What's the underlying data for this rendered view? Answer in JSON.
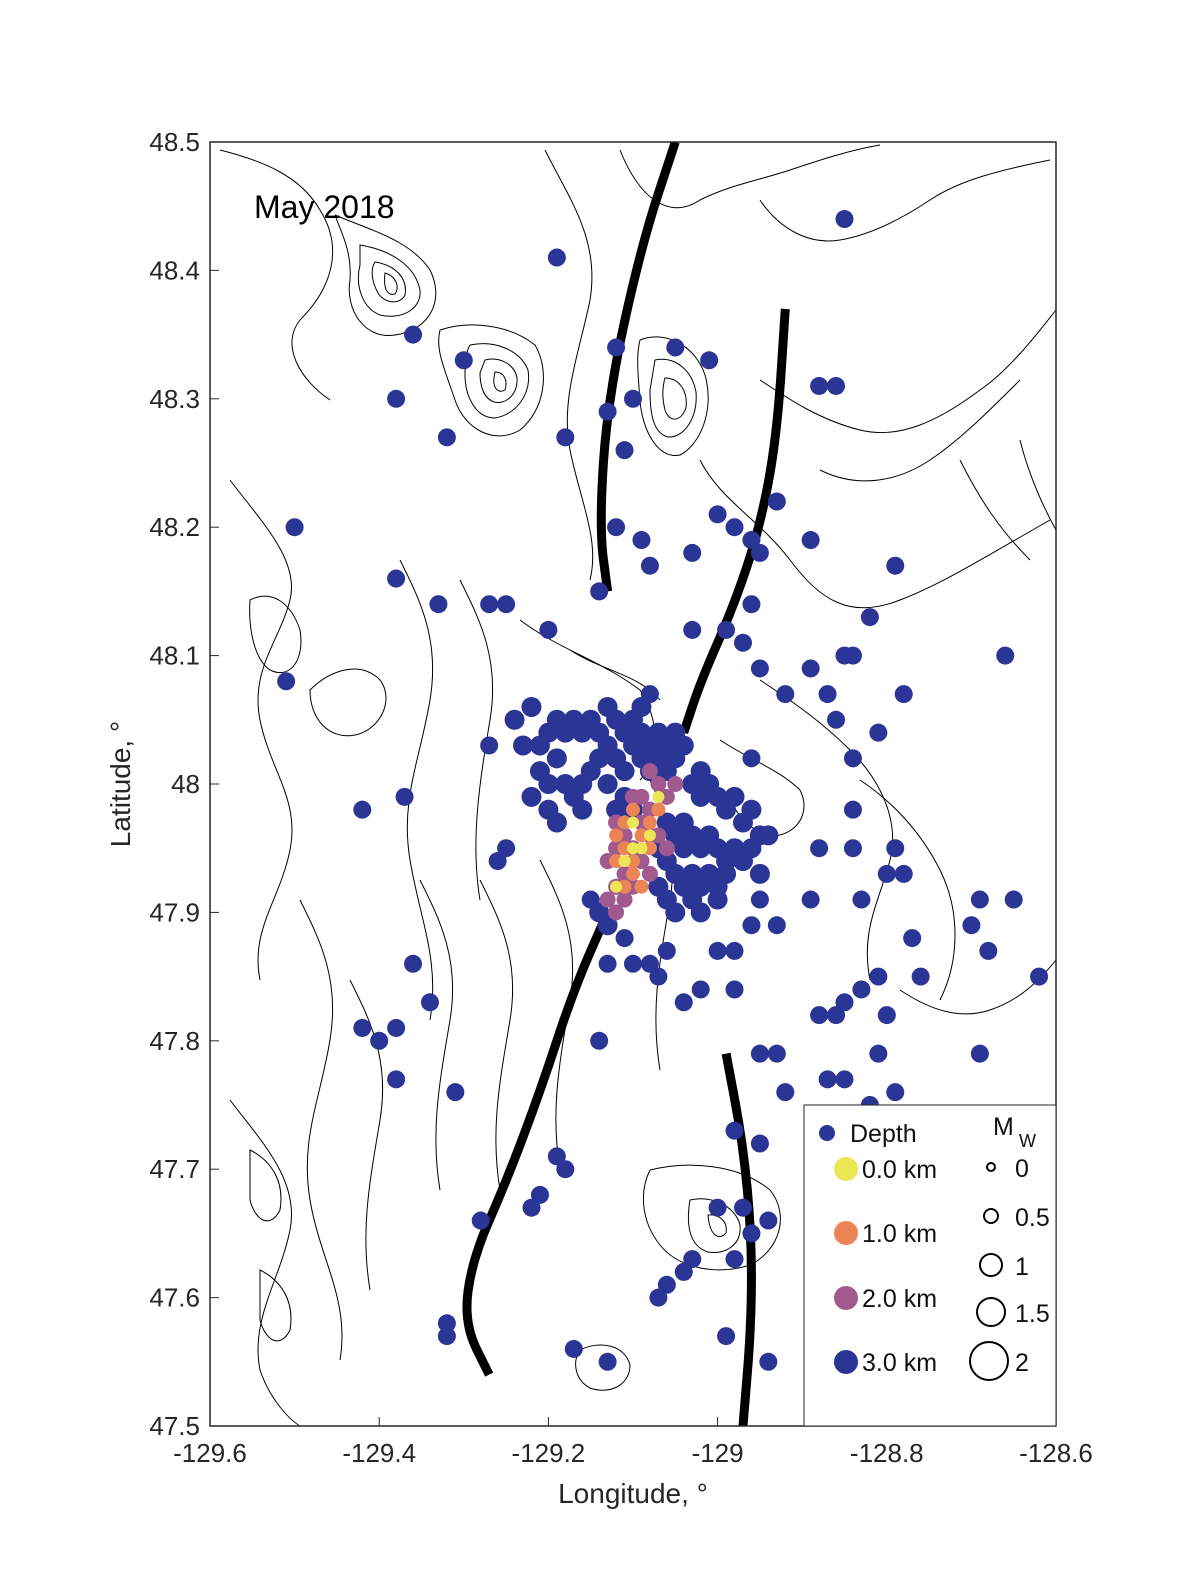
{
  "chart_data": {
    "type": "scatter",
    "annotation": "May 2018",
    "xlabel": "Longitude, °",
    "ylabel": "Latitude, °",
    "xlim": [
      -129.6,
      -128.6
    ],
    "ylim": [
      47.5,
      48.5
    ],
    "xticks": [
      "-129.6",
      "-129.4",
      "-129.2",
      "-129",
      "-128.8",
      "-128.6"
    ],
    "yticks": [
      "47.5",
      "47.6",
      "47.7",
      "47.8",
      "47.9",
      "48",
      "48.1",
      "48.2",
      "48.3",
      "48.4",
      "48.5"
    ],
    "grid": false,
    "legend": {
      "placement": "bottom-right",
      "depth_title": "Depth",
      "depth_entries": [
        {
          "label": "0.0 km",
          "color": "#ece655"
        },
        {
          "label": "1.0 km",
          "color": "#ec8556"
        },
        {
          "label": "2.0 km",
          "color": "#a05a8f"
        },
        {
          "label": "3.0 km",
          "color": "#2b3596"
        }
      ],
      "mag_title": "M",
      "mag_subscript": "W",
      "mag_entries": [
        "0",
        "0.5",
        "1",
        "1.5",
        "2"
      ]
    },
    "colors": {
      "deep": "#2b3596",
      "mid": "#a05a8f",
      "shallow_orange": "#ec8556",
      "shallow_yellow": "#ece655",
      "contour": "#000000",
      "fault": "#000000"
    },
    "fault_traces": [
      {
        "name": "",
        "points": [
          [
            -129.05,
            48.5
          ],
          [
            -129.09,
            48.42
          ],
          [
            -129.13,
            48.3
          ],
          [
            -129.14,
            48.2
          ],
          [
            -129.13,
            48.15
          ]
        ]
      },
      {
        "name": "",
        "points": [
          [
            -128.92,
            48.37
          ],
          [
            -128.93,
            48.27
          ],
          [
            -128.95,
            48.2
          ],
          [
            -128.98,
            48.14
          ],
          [
            -129.02,
            48.08
          ],
          [
            -129.04,
            48.04
          ]
        ]
      },
      {
        "name": "",
        "points": [
          [
            -129.13,
            47.9
          ],
          [
            -129.17,
            47.84
          ],
          [
            -129.21,
            47.76
          ],
          [
            -129.25,
            47.69
          ],
          [
            -129.29,
            47.63
          ],
          [
            -129.3,
            47.58
          ],
          [
            -129.27,
            47.54
          ]
        ]
      },
      {
        "name": "",
        "points": [
          [
            -128.99,
            47.79
          ],
          [
            -128.97,
            47.72
          ],
          [
            -128.96,
            47.65
          ],
          [
            -128.96,
            47.58
          ],
          [
            -128.97,
            47.5
          ]
        ]
      }
    ],
    "events_scattered": [
      [
        -128.85,
        48.44,
        3
      ],
      [
        -129.19,
        48.41,
        3
      ],
      [
        -129.36,
        48.35,
        3
      ],
      [
        -129.12,
        48.34,
        3
      ],
      [
        -129.3,
        48.33,
        3
      ],
      [
        -129.05,
        48.34,
        3
      ],
      [
        -129.01,
        48.33,
        3
      ],
      [
        -128.88,
        48.31,
        3
      ],
      [
        -128.86,
        48.31,
        3
      ],
      [
        -129.38,
        48.3,
        3
      ],
      [
        -129.13,
        48.29,
        3
      ],
      [
        -129.1,
        48.3,
        3
      ],
      [
        -129.32,
        48.27,
        3
      ],
      [
        -129.18,
        48.27,
        3
      ],
      [
        -129.11,
        48.26,
        3
      ],
      [
        -128.93,
        48.22,
        3
      ],
      [
        -129.12,
        48.2,
        3
      ],
      [
        -129.09,
        48.19,
        3
      ],
      [
        -129.5,
        48.2,
        3
      ],
      [
        -129.03,
        48.18,
        3
      ],
      [
        -128.96,
        48.19,
        3
      ],
      [
        -128.89,
        48.19,
        3
      ],
      [
        -128.98,
        48.2,
        3
      ],
      [
        -129.0,
        48.21,
        3
      ],
      [
        -129.08,
        48.17,
        3
      ],
      [
        -128.95,
        48.18,
        3
      ],
      [
        -128.79,
        48.17,
        3
      ],
      [
        -129.38,
        48.16,
        3
      ],
      [
        -129.14,
        48.15,
        3
      ],
      [
        -129.33,
        48.14,
        3
      ],
      [
        -129.27,
        48.14,
        3
      ],
      [
        -129.25,
        48.14,
        3
      ],
      [
        -128.96,
        48.14,
        3
      ],
      [
        -128.82,
        48.13,
        3
      ],
      [
        -129.2,
        48.12,
        3
      ],
      [
        -128.99,
        48.12,
        3
      ],
      [
        -129.03,
        48.12,
        3
      ],
      [
        -128.97,
        48.11,
        3
      ],
      [
        -128.85,
        48.1,
        3
      ],
      [
        -128.84,
        48.1,
        3
      ],
      [
        -128.66,
        48.1,
        3
      ],
      [
        -128.95,
        48.09,
        3
      ],
      [
        -129.51,
        48.08,
        3
      ],
      [
        -128.89,
        48.09,
        3
      ],
      [
        -128.78,
        48.07,
        3
      ],
      [
        -129.08,
        48.07,
        3
      ],
      [
        -128.87,
        48.07,
        3
      ],
      [
        -128.92,
        48.07,
        3
      ],
      [
        -128.86,
        48.05,
        3
      ],
      [
        -128.81,
        48.04,
        3
      ],
      [
        -129.27,
        48.03,
        3
      ],
      [
        -128.84,
        48.02,
        3
      ],
      [
        -128.96,
        48.02,
        3
      ],
      [
        -129.42,
        47.98,
        3
      ],
      [
        -129.37,
        47.99,
        3
      ],
      [
        -128.84,
        47.98,
        3
      ],
      [
        -128.79,
        47.95,
        3
      ],
      [
        -128.88,
        47.95,
        3
      ],
      [
        -128.84,
        47.95,
        3
      ],
      [
        -129.26,
        47.94,
        3
      ],
      [
        -129.25,
        47.95,
        3
      ],
      [
        -128.8,
        47.93,
        3
      ],
      [
        -128.78,
        47.93,
        3
      ],
      [
        -128.83,
        47.91,
        3
      ],
      [
        -129.15,
        47.91,
        3
      ],
      [
        -128.89,
        47.91,
        3
      ],
      [
        -128.95,
        47.91,
        3
      ],
      [
        -128.69,
        47.91,
        3
      ],
      [
        -128.65,
        47.91,
        3
      ],
      [
        -128.7,
        47.89,
        3
      ],
      [
        -129.11,
        47.88,
        3
      ],
      [
        -128.96,
        47.89,
        3
      ],
      [
        -128.93,
        47.89,
        3
      ],
      [
        -128.77,
        47.88,
        3
      ],
      [
        -129.0,
        47.87,
        3
      ],
      [
        -128.98,
        47.87,
        3
      ],
      [
        -129.06,
        47.87,
        3
      ],
      [
        -128.68,
        47.87,
        3
      ],
      [
        -129.36,
        47.86,
        3
      ],
      [
        -129.08,
        47.86,
        3
      ],
      [
        -129.13,
        47.86,
        3
      ],
      [
        -129.1,
        47.86,
        3
      ],
      [
        -129.07,
        47.85,
        3
      ],
      [
        -128.81,
        47.85,
        3
      ],
      [
        -128.76,
        47.85,
        3
      ],
      [
        -128.62,
        47.85,
        3
      ],
      [
        -129.02,
        47.84,
        3
      ],
      [
        -128.83,
        47.84,
        3
      ],
      [
        -128.85,
        47.83,
        3
      ],
      [
        -129.04,
        47.83,
        3
      ],
      [
        -128.98,
        47.84,
        3
      ],
      [
        -129.34,
        47.83,
        3
      ],
      [
        -128.86,
        47.82,
        3
      ],
      [
        -128.88,
        47.82,
        3
      ],
      [
        -128.8,
        47.82,
        3
      ],
      [
        -129.42,
        47.81,
        3
      ],
      [
        -129.4,
        47.8,
        3
      ],
      [
        -129.38,
        47.81,
        3
      ],
      [
        -129.14,
        47.8,
        3
      ],
      [
        -128.95,
        47.79,
        3
      ],
      [
        -128.93,
        47.79,
        3
      ],
      [
        -128.81,
        47.79,
        3
      ],
      [
        -128.69,
        47.79,
        3
      ],
      [
        -128.87,
        47.77,
        3
      ],
      [
        -128.85,
        47.77,
        3
      ],
      [
        -129.38,
        47.77,
        3
      ],
      [
        -128.79,
        47.76,
        3
      ],
      [
        -129.31,
        47.76,
        3
      ],
      [
        -128.92,
        47.76,
        3
      ],
      [
        -128.82,
        47.75,
        3
      ],
      [
        -128.98,
        47.73,
        3
      ],
      [
        -129.19,
        47.71,
        3
      ],
      [
        -128.95,
        47.72,
        3
      ],
      [
        -129.18,
        47.7,
        3
      ],
      [
        -128.78,
        47.69,
        3
      ],
      [
        -129.21,
        47.68,
        3
      ],
      [
        -129.22,
        47.67,
        3
      ],
      [
        -129.0,
        47.67,
        3
      ],
      [
        -128.97,
        47.67,
        3
      ],
      [
        -129.28,
        47.66,
        3
      ],
      [
        -128.67,
        47.67,
        3
      ],
      [
        -128.94,
        47.66,
        3
      ],
      [
        -128.96,
        47.65,
        3
      ],
      [
        -128.87,
        47.65,
        3
      ],
      [
        -128.88,
        47.64,
        3
      ],
      [
        -128.85,
        47.65,
        3
      ],
      [
        -129.04,
        47.62,
        3
      ],
      [
        -129.03,
        47.63,
        3
      ],
      [
        -128.98,
        47.63,
        3
      ],
      [
        -129.07,
        47.6,
        3
      ],
      [
        -129.06,
        47.61,
        3
      ],
      [
        -129.32,
        47.58,
        3
      ],
      [
        -129.32,
        47.57,
        3
      ],
      [
        -128.99,
        47.57,
        3
      ],
      [
        -129.17,
        47.56,
        3
      ],
      [
        -129.13,
        47.55,
        3
      ],
      [
        -128.94,
        47.55,
        3
      ]
    ],
    "events_cluster_deep": [
      [
        -129.17,
        48.05,
        3
      ],
      [
        -129.18,
        48.04,
        3
      ],
      [
        -129.19,
        48.05,
        3
      ],
      [
        -129.2,
        48.04,
        3
      ],
      [
        -129.16,
        48.04,
        3
      ],
      [
        -129.15,
        48.05,
        3
      ],
      [
        -129.13,
        48.06,
        3
      ],
      [
        -129.12,
        48.05,
        3
      ],
      [
        -129.11,
        48.04,
        3
      ],
      [
        -129.1,
        48.05,
        3
      ],
      [
        -129.09,
        48.04,
        3
      ],
      [
        -129.08,
        48.03,
        3
      ],
      [
        -129.07,
        48.04,
        3
      ],
      [
        -129.06,
        48.03,
        3
      ],
      [
        -129.05,
        48.02,
        3
      ],
      [
        -129.04,
        48.03,
        3
      ],
      [
        -129.13,
        48.03,
        3
      ],
      [
        -129.12,
        48.02,
        3
      ],
      [
        -129.11,
        48.01,
        3
      ],
      [
        -129.1,
        48.03,
        3
      ],
      [
        -129.09,
        48.02,
        3
      ],
      [
        -129.08,
        48.01,
        3
      ],
      [
        -129.07,
        48.02,
        3
      ],
      [
        -129.06,
        48.01,
        3
      ],
      [
        -129.14,
        48.02,
        3
      ],
      [
        -129.15,
        48.01,
        3
      ],
      [
        -129.16,
        48.0,
        3
      ],
      [
        -129.17,
        47.99,
        3
      ],
      [
        -129.18,
        48.0,
        3
      ],
      [
        -129.2,
        47.98,
        3
      ],
      [
        -129.22,
        47.99,
        3
      ],
      [
        -129.21,
        48.01,
        3
      ],
      [
        -129.19,
        48.02,
        3
      ],
      [
        -129.23,
        48.03,
        3
      ],
      [
        -129.24,
        48.05,
        3
      ],
      [
        -129.22,
        48.06,
        3
      ],
      [
        -129.21,
        48.03,
        3
      ],
      [
        -129.14,
        48.04,
        3
      ],
      [
        -129.09,
        48.06,
        3
      ],
      [
        -129.05,
        48.04,
        3
      ],
      [
        -129.03,
        48.0,
        3
      ],
      [
        -129.02,
        47.99,
        3
      ],
      [
        -129.01,
        48.0,
        3
      ],
      [
        -129.0,
        47.99,
        3
      ],
      [
        -128.99,
        47.98,
        3
      ],
      [
        -128.98,
        47.99,
        3
      ],
      [
        -128.97,
        47.97,
        3
      ],
      [
        -128.96,
        47.98,
        3
      ],
      [
        -128.95,
        47.96,
        3
      ],
      [
        -129.04,
        47.97,
        3
      ],
      [
        -129.05,
        47.96,
        3
      ],
      [
        -129.04,
        47.95,
        3
      ],
      [
        -129.03,
        47.96,
        3
      ],
      [
        -129.02,
        47.95,
        3
      ],
      [
        -129.01,
        47.96,
        3
      ],
      [
        -129.0,
        47.95,
        3
      ],
      [
        -128.99,
        47.94,
        3
      ],
      [
        -128.98,
        47.95,
        3
      ],
      [
        -128.97,
        47.94,
        3
      ],
      [
        -129.06,
        47.94,
        3
      ],
      [
        -129.05,
        47.93,
        3
      ],
      [
        -129.04,
        47.92,
        3
      ],
      [
        -129.03,
        47.93,
        3
      ],
      [
        -129.02,
        47.92,
        3
      ],
      [
        -129.01,
        47.93,
        3
      ],
      [
        -129.0,
        47.92,
        3
      ],
      [
        -128.99,
        47.93,
        3
      ],
      [
        -129.06,
        47.91,
        3
      ],
      [
        -129.05,
        47.9,
        3
      ],
      [
        -129.03,
        47.91,
        3
      ],
      [
        -129.02,
        47.9,
        3
      ],
      [
        -129.0,
        47.91,
        3
      ],
      [
        -129.07,
        47.92,
        3
      ],
      [
        -129.07,
        47.95,
        3
      ],
      [
        -129.06,
        47.97,
        3
      ],
      [
        -128.96,
        47.95,
        3
      ],
      [
        -128.95,
        47.93,
        3
      ],
      [
        -128.94,
        47.96,
        3
      ],
      [
        -129.12,
        47.98,
        3
      ],
      [
        -129.11,
        47.99,
        3
      ],
      [
        -129.1,
        47.98,
        3
      ],
      [
        -129.13,
        48.0,
        3
      ],
      [
        -129.2,
        48.0,
        3
      ],
      [
        -129.19,
        47.97,
        3
      ],
      [
        -129.16,
        47.98,
        3
      ],
      [
        -129.02,
        48.01,
        3
      ],
      [
        -129.13,
        47.89,
        3
      ],
      [
        -129.14,
        47.9,
        3
      ]
    ],
    "events_cluster_mid": [
      [
        -129.1,
        47.99,
        2
      ],
      [
        -129.09,
        47.97,
        2
      ],
      [
        -129.08,
        47.96,
        2
      ],
      [
        -129.11,
        47.96,
        2
      ],
      [
        -129.1,
        47.95,
        2
      ],
      [
        -129.12,
        47.95,
        2
      ],
      [
        -129.11,
        47.93,
        2
      ],
      [
        -129.09,
        47.94,
        2
      ],
      [
        -129.08,
        47.93,
        2
      ],
      [
        -129.1,
        47.92,
        2
      ],
      [
        -129.12,
        47.92,
        2
      ],
      [
        -129.11,
        47.91,
        2
      ],
      [
        -129.09,
        47.99,
        2
      ],
      [
        -129.07,
        48.0,
        2
      ],
      [
        -129.06,
        47.99,
        2
      ],
      [
        -129.08,
        47.98,
        2
      ],
      [
        -129.12,
        47.97,
        2
      ],
      [
        -129.13,
        47.94,
        2
      ],
      [
        -129.07,
        47.96,
        2
      ],
      [
        -129.06,
        47.95,
        2
      ],
      [
        -129.13,
        47.91,
        2
      ],
      [
        -129.12,
        47.9,
        2
      ],
      [
        -129.08,
        48.01,
        2
      ],
      [
        -129.05,
        48.0,
        2
      ]
    ],
    "events_cluster_orange": [
      [
        -129.1,
        47.98,
        1
      ],
      [
        -129.09,
        47.96,
        1
      ],
      [
        -129.1,
        47.94,
        1
      ],
      [
        -129.11,
        47.95,
        1
      ],
      [
        -129.08,
        47.95,
        1
      ],
      [
        -129.12,
        47.94,
        1
      ],
      [
        -129.1,
        47.93,
        1
      ],
      [
        -129.09,
        47.92,
        1
      ],
      [
        -129.11,
        47.92,
        1
      ],
      [
        -129.08,
        47.97,
        1
      ],
      [
        -129.11,
        47.97,
        1
      ],
      [
        -129.07,
        47.98,
        1
      ],
      [
        -129.12,
        47.96,
        1
      ]
    ],
    "events_cluster_yellow": [
      [
        -129.1,
        47.97,
        0
      ],
      [
        -129.09,
        47.95,
        0
      ],
      [
        -129.11,
        47.94,
        0
      ],
      [
        -129.12,
        47.92,
        0
      ],
      [
        -129.08,
        47.96,
        0
      ],
      [
        -129.07,
        47.99,
        0
      ],
      [
        -129.1,
        47.95,
        0
      ]
    ]
  }
}
